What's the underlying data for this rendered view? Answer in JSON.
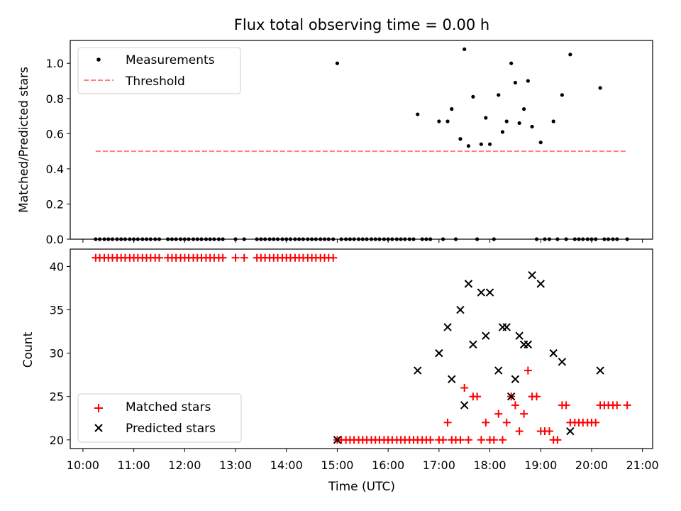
{
  "figure": {
    "title": "Flux total observing time = 0.00 h"
  },
  "colors": {
    "measurements": "#000000",
    "threshold": "#ff7f7f",
    "matched": "#ff0000",
    "predicted": "#000000"
  },
  "chart_data": [
    {
      "type": "scatter",
      "panel": "top",
      "ylabel": "Matched/Predicted stars",
      "ylim": [
        0,
        1.13
      ],
      "yticks": [
        "0.0",
        "0.2",
        "0.4",
        "0.6",
        "0.8",
        "1.0"
      ],
      "xlim": [
        9.75,
        21.2
      ],
      "legend": {
        "location": "upper-left",
        "entries": [
          "Measurements",
          "Threshold"
        ]
      },
      "threshold": {
        "value": 0.5,
        "x_range": [
          10.25,
          20.7
        ]
      },
      "series": [
        {
          "name": "Measurements",
          "points": [
            [
              10.25,
              0
            ],
            [
              10.33,
              0
            ],
            [
              10.42,
              0
            ],
            [
              10.5,
              0
            ],
            [
              10.58,
              0
            ],
            [
              10.67,
              0
            ],
            [
              10.75,
              0
            ],
            [
              10.83,
              0
            ],
            [
              10.92,
              0
            ],
            [
              11.0,
              0
            ],
            [
              11.08,
              0
            ],
            [
              11.17,
              0
            ],
            [
              11.25,
              0
            ],
            [
              11.33,
              0
            ],
            [
              11.42,
              0
            ],
            [
              11.5,
              0
            ],
            [
              11.67,
              0
            ],
            [
              11.75,
              0
            ],
            [
              11.83,
              0
            ],
            [
              11.92,
              0
            ],
            [
              12.0,
              0
            ],
            [
              12.08,
              0
            ],
            [
              12.17,
              0
            ],
            [
              12.25,
              0
            ],
            [
              12.33,
              0
            ],
            [
              12.42,
              0
            ],
            [
              12.5,
              0
            ],
            [
              12.58,
              0
            ],
            [
              12.67,
              0
            ],
            [
              12.75,
              0
            ],
            [
              13.0,
              0
            ],
            [
              13.17,
              0
            ],
            [
              13.42,
              0
            ],
            [
              13.5,
              0
            ],
            [
              13.58,
              0
            ],
            [
              13.67,
              0
            ],
            [
              13.75,
              0
            ],
            [
              13.83,
              0
            ],
            [
              13.92,
              0
            ],
            [
              14.0,
              0
            ],
            [
              14.08,
              0
            ],
            [
              14.17,
              0
            ],
            [
              14.25,
              0
            ],
            [
              14.33,
              0
            ],
            [
              14.42,
              0
            ],
            [
              14.5,
              0
            ],
            [
              14.58,
              0
            ],
            [
              14.67,
              0
            ],
            [
              14.75,
              0
            ],
            [
              14.83,
              0
            ],
            [
              14.92,
              0
            ],
            [
              15.0,
              1.0
            ],
            [
              15.08,
              0
            ],
            [
              15.17,
              0
            ],
            [
              15.25,
              0
            ],
            [
              15.33,
              0
            ],
            [
              15.42,
              0
            ],
            [
              15.5,
              0
            ],
            [
              15.58,
              0
            ],
            [
              15.67,
              0
            ],
            [
              15.75,
              0
            ],
            [
              15.83,
              0
            ],
            [
              15.92,
              0
            ],
            [
              16.0,
              0
            ],
            [
              16.08,
              0
            ],
            [
              16.17,
              0
            ],
            [
              16.25,
              0
            ],
            [
              16.33,
              0
            ],
            [
              16.42,
              0
            ],
            [
              16.5,
              0
            ],
            [
              16.58,
              0.71
            ],
            [
              16.67,
              0
            ],
            [
              16.75,
              0
            ],
            [
              16.83,
              0
            ],
            [
              17.0,
              0.67
            ],
            [
              17.08,
              0
            ],
            [
              17.17,
              0.67
            ],
            [
              17.25,
              0.74
            ],
            [
              17.33,
              0
            ],
            [
              17.42,
              0.57
            ],
            [
              17.5,
              1.08
            ],
            [
              17.58,
              0.53
            ],
            [
              17.67,
              0.81
            ],
            [
              17.75,
              0
            ],
            [
              17.83,
              0.54
            ],
            [
              17.92,
              0.69
            ],
            [
              18.0,
              0.54
            ],
            [
              18.08,
              0
            ],
            [
              18.17,
              0.82
            ],
            [
              18.25,
              0.61
            ],
            [
              18.33,
              0.67
            ],
            [
              18.42,
              1.0
            ],
            [
              18.5,
              0.89
            ],
            [
              18.58,
              0.66
            ],
            [
              18.67,
              0.74
            ],
            [
              18.75,
              0.9
            ],
            [
              18.83,
              0.64
            ],
            [
              18.92,
              0
            ],
            [
              19.0,
              0.55
            ],
            [
              19.08,
              0
            ],
            [
              19.17,
              0
            ],
            [
              19.25,
              0.67
            ],
            [
              19.33,
              0
            ],
            [
              19.42,
              0.82
            ],
            [
              19.5,
              0
            ],
            [
              19.58,
              1.05
            ],
            [
              19.67,
              0
            ],
            [
              19.75,
              0
            ],
            [
              19.83,
              0
            ],
            [
              19.92,
              0
            ],
            [
              20.0,
              0
            ],
            [
              20.08,
              0
            ],
            [
              20.17,
              0.86
            ],
            [
              20.25,
              0
            ],
            [
              20.33,
              0
            ],
            [
              20.42,
              0
            ],
            [
              20.5,
              0
            ],
            [
              20.7,
              0
            ]
          ]
        }
      ]
    },
    {
      "type": "scatter",
      "panel": "bottom",
      "xlabel": "Time (UTC)",
      "ylabel": "Count",
      "ylim": [
        19,
        42
      ],
      "yticks": [
        "20",
        "25",
        "30",
        "35",
        "40"
      ],
      "xlim": [
        9.75,
        21.2
      ],
      "xticks": [
        {
          "value": 10,
          "label": "10:00"
        },
        {
          "value": 11,
          "label": "11:00"
        },
        {
          "value": 12,
          "label": "12:00"
        },
        {
          "value": 13,
          "label": "13:00"
        },
        {
          "value": 14,
          "label": "14:00"
        },
        {
          "value": 15,
          "label": "15:00"
        },
        {
          "value": 16,
          "label": "16:00"
        },
        {
          "value": 17,
          "label": "17:00"
        },
        {
          "value": 18,
          "label": "18:00"
        },
        {
          "value": 19,
          "label": "19:00"
        },
        {
          "value": 20,
          "label": "20:00"
        },
        {
          "value": 21,
          "label": "21:00"
        }
      ],
      "legend": {
        "location": "lower-left",
        "entries": [
          "Matched stars",
          "Predicted stars"
        ]
      },
      "series": [
        {
          "name": "Matched stars",
          "marker": "plus",
          "points": [
            [
              10.25,
              41
            ],
            [
              10.33,
              41
            ],
            [
              10.42,
              41
            ],
            [
              10.5,
              41
            ],
            [
              10.58,
              41
            ],
            [
              10.67,
              41
            ],
            [
              10.75,
              41
            ],
            [
              10.83,
              41
            ],
            [
              10.92,
              41
            ],
            [
              11.0,
              41
            ],
            [
              11.08,
              41
            ],
            [
              11.17,
              41
            ],
            [
              11.25,
              41
            ],
            [
              11.33,
              41
            ],
            [
              11.42,
              41
            ],
            [
              11.5,
              41
            ],
            [
              11.67,
              41
            ],
            [
              11.75,
              41
            ],
            [
              11.83,
              41
            ],
            [
              11.92,
              41
            ],
            [
              12.0,
              41
            ],
            [
              12.08,
              41
            ],
            [
              12.17,
              41
            ],
            [
              12.25,
              41
            ],
            [
              12.33,
              41
            ],
            [
              12.42,
              41
            ],
            [
              12.5,
              41
            ],
            [
              12.58,
              41
            ],
            [
              12.67,
              41
            ],
            [
              12.75,
              41
            ],
            [
              13.0,
              41
            ],
            [
              13.17,
              41
            ],
            [
              13.42,
              41
            ],
            [
              13.5,
              41
            ],
            [
              13.58,
              41
            ],
            [
              13.67,
              41
            ],
            [
              13.75,
              41
            ],
            [
              13.83,
              41
            ],
            [
              13.92,
              41
            ],
            [
              14.0,
              41
            ],
            [
              14.08,
              41
            ],
            [
              14.17,
              41
            ],
            [
              14.25,
              41
            ],
            [
              14.33,
              41
            ],
            [
              14.42,
              41
            ],
            [
              14.5,
              41
            ],
            [
              14.58,
              41
            ],
            [
              14.67,
              41
            ],
            [
              14.75,
              41
            ],
            [
              14.83,
              41
            ],
            [
              14.92,
              41
            ],
            [
              15.0,
              20
            ],
            [
              15.08,
              20
            ],
            [
              15.17,
              20
            ],
            [
              15.25,
              20
            ],
            [
              15.33,
              20
            ],
            [
              15.42,
              20
            ],
            [
              15.5,
              20
            ],
            [
              15.58,
              20
            ],
            [
              15.67,
              20
            ],
            [
              15.75,
              20
            ],
            [
              15.83,
              20
            ],
            [
              15.92,
              20
            ],
            [
              16.0,
              20
            ],
            [
              16.08,
              20
            ],
            [
              16.17,
              20
            ],
            [
              16.25,
              20
            ],
            [
              16.33,
              20
            ],
            [
              16.42,
              20
            ],
            [
              16.5,
              20
            ],
            [
              16.58,
              20
            ],
            [
              16.67,
              20
            ],
            [
              16.75,
              20
            ],
            [
              16.83,
              20
            ],
            [
              17.0,
              20
            ],
            [
              17.08,
              20
            ],
            [
              17.17,
              22
            ],
            [
              17.25,
              20
            ],
            [
              17.33,
              20
            ],
            [
              17.42,
              20
            ],
            [
              17.5,
              26
            ],
            [
              17.58,
              20
            ],
            [
              17.67,
              25
            ],
            [
              17.75,
              25
            ],
            [
              17.83,
              20
            ],
            [
              17.92,
              22
            ],
            [
              18.0,
              20
            ],
            [
              18.08,
              20
            ],
            [
              18.17,
              23
            ],
            [
              18.25,
              20
            ],
            [
              18.33,
              22
            ],
            [
              18.42,
              25
            ],
            [
              18.5,
              24
            ],
            [
              18.58,
              21
            ],
            [
              18.67,
              23
            ],
            [
              18.75,
              28
            ],
            [
              18.83,
              25
            ],
            [
              18.92,
              25
            ],
            [
              19.0,
              21
            ],
            [
              19.08,
              21
            ],
            [
              19.17,
              21
            ],
            [
              19.25,
              20
            ],
            [
              19.33,
              20
            ],
            [
              19.42,
              24
            ],
            [
              19.5,
              24
            ],
            [
              19.58,
              22
            ],
            [
              19.67,
              22
            ],
            [
              19.75,
              22
            ],
            [
              19.83,
              22
            ],
            [
              19.92,
              22
            ],
            [
              20.0,
              22
            ],
            [
              20.08,
              22
            ],
            [
              20.17,
              24
            ],
            [
              20.25,
              24
            ],
            [
              20.33,
              24
            ],
            [
              20.42,
              24
            ],
            [
              20.5,
              24
            ],
            [
              20.7,
              24
            ]
          ]
        },
        {
          "name": "Predicted stars",
          "marker": "x",
          "points": [
            [
              15.0,
              20
            ],
            [
              16.58,
              28
            ],
            [
              17.0,
              30
            ],
            [
              17.17,
              33
            ],
            [
              17.25,
              27
            ],
            [
              17.42,
              35
            ],
            [
              17.5,
              24
            ],
            [
              17.58,
              38
            ],
            [
              17.67,
              31
            ],
            [
              17.83,
              37
            ],
            [
              17.92,
              32
            ],
            [
              18.0,
              37
            ],
            [
              18.17,
              28
            ],
            [
              18.25,
              33
            ],
            [
              18.33,
              33
            ],
            [
              18.42,
              25
            ],
            [
              18.5,
              27
            ],
            [
              18.58,
              32
            ],
            [
              18.67,
              31
            ],
            [
              18.75,
              31
            ],
            [
              18.83,
              39
            ],
            [
              19.0,
              38
            ],
            [
              19.25,
              30
            ],
            [
              19.42,
              29
            ],
            [
              19.58,
              21
            ],
            [
              20.17,
              28
            ]
          ]
        }
      ]
    }
  ]
}
